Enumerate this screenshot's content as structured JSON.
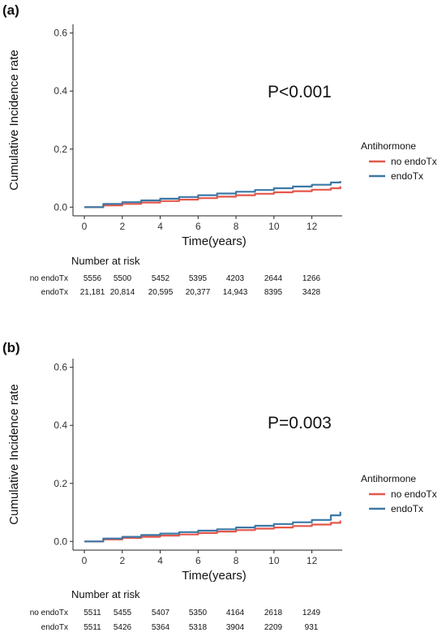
{
  "chart_data": [
    {
      "type": "line",
      "panel_label": "(a)",
      "ylabel": "Cumulative Incidence rate",
      "xlabel": "Time(years)",
      "xlim": [
        -0.6,
        13.6
      ],
      "ylim": [
        -0.03,
        0.63
      ],
      "xticks": [
        0,
        2,
        4,
        6,
        8,
        10,
        12
      ],
      "yticks": [
        0.0,
        0.2,
        0.4,
        0.6
      ],
      "ytick_labels": [
        "0.0",
        "0.2",
        "0.4",
        "0.6"
      ],
      "annotation": "P<0.001",
      "legend": {
        "title": "Antihormone",
        "placement": "right"
      },
      "series": [
        {
          "name": "no endoTx",
          "color": "#E4574B",
          "x": [
            0,
            1,
            2,
            3,
            4,
            5,
            6,
            7,
            8,
            9,
            10,
            11,
            12,
            13,
            13.5
          ],
          "y": [
            0.0,
            0.006,
            0.011,
            0.016,
            0.021,
            0.026,
            0.031,
            0.036,
            0.041,
            0.046,
            0.051,
            0.055,
            0.06,
            0.065,
            0.072
          ]
        },
        {
          "name": "endoTx",
          "color": "#3C78A6",
          "x": [
            0,
            1,
            2,
            3,
            4,
            5,
            6,
            7,
            8,
            9,
            10,
            11,
            12,
            13,
            13.5
          ],
          "y": [
            0.0,
            0.011,
            0.017,
            0.023,
            0.029,
            0.035,
            0.041,
            0.047,
            0.053,
            0.059,
            0.065,
            0.071,
            0.077,
            0.085,
            0.09
          ]
        }
      ],
      "risk_table": {
        "title": "Number at risk",
        "rows": [
          {
            "label": "no endoTx",
            "values": [
              "5556",
              "5500",
              "5452",
              "5395",
              "4203",
              "2644",
              "1266"
            ]
          },
          {
            "label": "endoTx",
            "values": [
              "21,181",
              "20,814",
              "20,595",
              "20,377",
              "14,943",
              "8395",
              "3428"
            ]
          }
        ]
      }
    },
    {
      "type": "line",
      "panel_label": "(b)",
      "ylabel": "Cumulative Incidence rate",
      "xlabel": "Time(years)",
      "xlim": [
        -0.6,
        13.6
      ],
      "ylim": [
        -0.03,
        0.63
      ],
      "xticks": [
        0,
        2,
        4,
        6,
        8,
        10,
        12
      ],
      "yticks": [
        0.0,
        0.2,
        0.4,
        0.6
      ],
      "ytick_labels": [
        "0.0",
        "0.2",
        "0.4",
        "0.6"
      ],
      "annotation": "P=0.003",
      "legend": {
        "title": "Antihormone",
        "placement": "right"
      },
      "series": [
        {
          "name": "no endoTx",
          "color": "#E4574B",
          "x": [
            0,
            1,
            2,
            3,
            4,
            5,
            6,
            7,
            8,
            9,
            10,
            11,
            12,
            13,
            13.5
          ],
          "y": [
            0.0,
            0.007,
            0.012,
            0.016,
            0.02,
            0.024,
            0.029,
            0.034,
            0.039,
            0.044,
            0.048,
            0.053,
            0.058,
            0.064,
            0.072
          ]
        },
        {
          "name": "endoTx",
          "color": "#3C78A6",
          "x": [
            0,
            1,
            2,
            3,
            4,
            5,
            6,
            7,
            8,
            9,
            10,
            11,
            12,
            13,
            13.5
          ],
          "y": [
            0.0,
            0.01,
            0.016,
            0.022,
            0.027,
            0.032,
            0.037,
            0.042,
            0.048,
            0.054,
            0.06,
            0.066,
            0.074,
            0.09,
            0.102
          ]
        }
      ],
      "risk_table": {
        "title": "Number at risk",
        "rows": [
          {
            "label": "no endoTx",
            "values": [
              "5511",
              "5455",
              "5407",
              "5350",
              "4164",
              "2618",
              "1249"
            ]
          },
          {
            "label": "endoTx",
            "values": [
              "5511",
              "5426",
              "5364",
              "5318",
              "3904",
              "2209",
              "931"
            ]
          }
        ]
      }
    }
  ]
}
